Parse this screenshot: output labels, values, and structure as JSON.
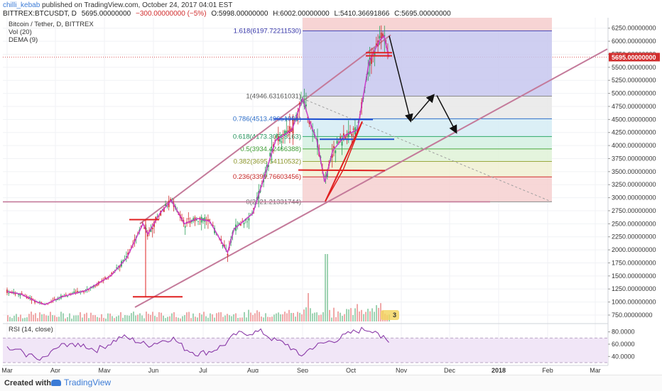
{
  "header": {
    "author": "chilli_kebab",
    "published": "published on TradingView.com, October 24, 2017 04:01 EST",
    "symbol": "BITTREX:BTCUSDT, D",
    "price": "5695.00000000",
    "change": "−300.00000000 (−5%)",
    "open": "O:5998.00000000",
    "high": "H:6002.00000000",
    "low": "L:5410.36691866",
    "close": "C:5695.00000000"
  },
  "indicators": [
    "Bitcoin / Tether, D, BITTREX",
    "Vol (20)",
    "DEMA (9)"
  ],
  "rsi_label": "RSI (14, close)",
  "footer": {
    "created": "Created with",
    "brand": "TradingView"
  },
  "colors": {
    "up": "#2e9e5a",
    "down": "#d12e2e",
    "dema": "#c833c8",
    "channel": "#c47a9a",
    "rsi": "#8a3aa8",
    "fib_top": "#f3c4c4"
  },
  "chart_data": {
    "type": "candlestick",
    "x_ticks": [
      "Mar",
      "Apr",
      "May",
      "Jun",
      "Jul",
      "Aug",
      "Sep",
      "Oct",
      "Nov",
      "Dec",
      "2018",
      "Feb",
      "Mar"
    ],
    "y_ticks": [
      750,
      1000,
      1250,
      1500,
      1750,
      2000,
      2250,
      2500,
      2750,
      3000,
      3250,
      3500,
      3750,
      4000,
      4250,
      4500,
      4750,
      5000,
      5250,
      5500,
      5750,
      6000,
      6250
    ],
    "y_tick_labels": [
      "750.00000000",
      "1000.00000000",
      "1250.00000000",
      "1500.00000000",
      "1750.00000000",
      "2000.00000000",
      "2250.00000000",
      "2500.00000000",
      "2750.00000000",
      "3000.00000000",
      "3250.00000000",
      "3500.00000000",
      "3750.00000000",
      "4000.00000000",
      "4250.00000000",
      "4500.00000000",
      "4750.00000000",
      "5000.00000000",
      "5250.00000000",
      "5500.00000000",
      "5750.00000000",
      "6000.00000000",
      "6250.00000000"
    ],
    "y_range": [
      600,
      6450
    ],
    "last_price_label": "5695.00000000",
    "last_price": 5695,
    "price_path": [
      [
        "Mar 1",
        1200
      ],
      [
        "Mar 10",
        1150
      ],
      [
        "Mar 20",
        1000
      ],
      [
        "Mar 25",
        950
      ],
      [
        "Apr 5",
        1100
      ],
      [
        "Apr 20",
        1220
      ],
      [
        "May 5",
        1500
      ],
      [
        "May 15",
        1850
      ],
      [
        "May 25",
        2500
      ],
      [
        "May 28",
        2300
      ],
      [
        "Jun 5",
        2700
      ],
      [
        "Jun 12",
        2950
      ],
      [
        "Jun 20",
        2500
      ],
      [
        "Jun 28",
        2600
      ],
      [
        "Jul 5",
        2550
      ],
      [
        "Jul 16",
        1950
      ],
      [
        "Jul 20",
        2400
      ],
      [
        "Aug 1",
        2700
      ],
      [
        "Aug 15",
        4100
      ],
      [
        "Aug 25",
        4300
      ],
      [
        "Sep 1",
        4900
      ],
      [
        "Sep 5",
        4500
      ],
      [
        "Sep 10",
        4100
      ],
      [
        "Sep 15",
        3300
      ],
      [
        "Sep 20",
        3900
      ],
      [
        "Sep 28",
        4200
      ],
      [
        "Oct 5",
        4300
      ],
      [
        "Oct 12",
        5600
      ],
      [
        "Oct 18",
        6000
      ],
      [
        "Oct 21",
        6100
      ],
      [
        "Oct 24",
        5695
      ]
    ],
    "fib_levels": [
      {
        "label": "1.618(6197.72211530)",
        "value": 6197.72
      },
      {
        "label": "1(4946.63161031)",
        "value": 4946.63
      },
      {
        "label": "0.786(4513.49651951)",
        "value": 4513.5
      },
      {
        "label": "0.618(4173.30563163)",
        "value": 4173.31
      },
      {
        "label": "0.5(3934.42466388)",
        "value": 3934.42
      },
      {
        "label": "0.382(3695.54110532)",
        "value": 3695.54
      },
      {
        "label": "0.236(3399.76603456)",
        "value": 3399.77
      },
      {
        "label": "0(2921.21331744)",
        "value": 2921.21
      }
    ],
    "volume_badge": "3",
    "rsi": {
      "y_ticks": [
        40,
        60,
        80
      ],
      "y_tick_labels": [
        "40.0000",
        "60.0000",
        "80.0000"
      ],
      "bands": [
        30,
        70
      ],
      "values": [
        52,
        48,
        40,
        38,
        55,
        62,
        58,
        50,
        60,
        72,
        66,
        58,
        64,
        70,
        52,
        44,
        48,
        58,
        76,
        78,
        80,
        66,
        60,
        40,
        55,
        62,
        68,
        78,
        84,
        82,
        62
      ]
    }
  }
}
